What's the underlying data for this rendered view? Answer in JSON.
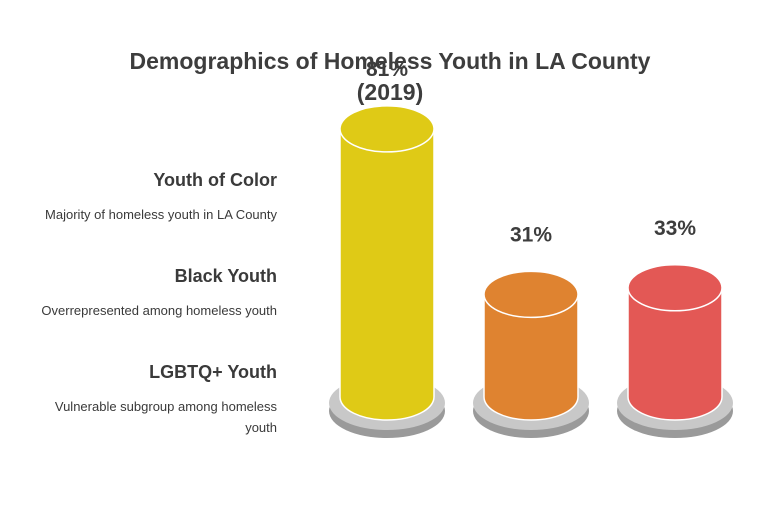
{
  "chart_data": {
    "type": "bar",
    "title_line1": "Demographics of Homeless Youth in LA County",
    "title_line2": "(2019)",
    "categories": [
      "Youth of Color",
      "Black Youth",
      "LGBTQ+ Youth"
    ],
    "descriptions": [
      "Majority of homeless youth in LA County",
      "Overrepresented among homeless youth",
      "Vulnerable subgroup among homeless youth"
    ],
    "values": [
      81,
      31,
      33
    ],
    "value_labels": [
      "81%",
      "31%",
      "33%"
    ],
    "colors": [
      "#dfca16",
      "#df8330",
      "#e35855"
    ],
    "ylim": [
      0,
      100
    ]
  }
}
